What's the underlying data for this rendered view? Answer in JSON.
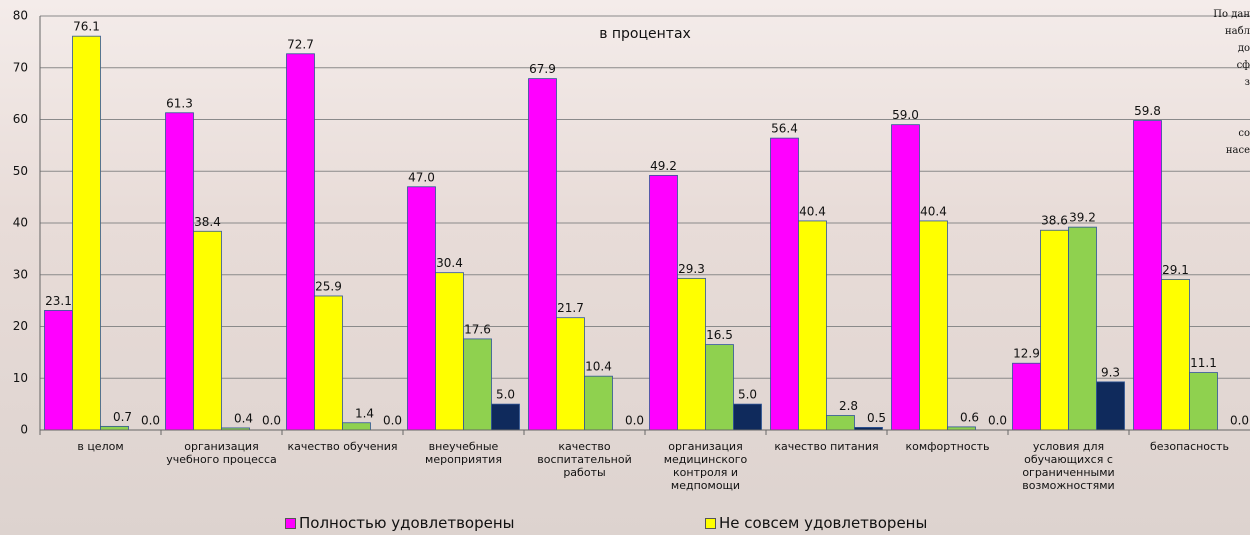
{
  "chart_data": {
    "type": "bar",
    "subtitle": "в процентах",
    "side_note": [
      "По дан",
      "набл",
      "до",
      "сф",
      "з",
      "со",
      "насе"
    ],
    "categories": [
      "в целом",
      "организация учебного процесса",
      "качество обучения",
      "внеучебные мероприятия",
      "качество воспитательной работы",
      "организация медицинского контроля и медпомощи",
      "качество питания",
      "комфортность",
      "условия для обучающихся с ограниченными возможностями",
      "безопасность"
    ],
    "series": [
      {
        "name": "Полностью удовлетворены",
        "color": "#ff00ff",
        "values": [
          23.1,
          61.3,
          72.7,
          47.0,
          67.9,
          49.2,
          56.4,
          59.0,
          12.9,
          59.8
        ],
        "value_labels": [
          "23.1",
          "61.3",
          "72.7",
          "47.0",
          "67.9",
          "49.2",
          "56.4",
          "59.0",
          "12.9",
          "59.8"
        ]
      },
      {
        "name": "Не совсем удовлетворены",
        "color": "#ffff00",
        "values": [
          76.1,
          38.4,
          25.9,
          30.4,
          21.7,
          29.3,
          40.4,
          40.4,
          38.6,
          29.1
        ],
        "value_labels": [
          "76.1",
          "38.4",
          "25.9",
          "30.4",
          "21.7",
          "29.3",
          "40.4",
          "40.4",
          "38.6",
          "29.1"
        ]
      },
      {
        "color": "#8fd14f",
        "values": [
          0.7,
          0.4,
          1.4,
          17.6,
          10.4,
          16.5,
          2.8,
          0.6,
          39.2,
          11.1
        ],
        "value_labels": [
          "0.7",
          "0.4",
          "1.4",
          "17.6",
          "10.4",
          "16.5",
          "2.8",
          "0.6",
          "39.2",
          "11.1"
        ]
      },
      {
        "color": "#0f2a5c",
        "values": [
          0,
          0,
          0,
          5.0,
          0,
          5.0,
          0.5,
          0,
          9.3,
          0
        ],
        "value_labels": [
          "0.0",
          "0.0",
          "0.0",
          "5.0",
          "0.0",
          "5.0",
          "0.5",
          "0.0",
          "9.3",
          "0.0"
        ]
      }
    ],
    "ylim": [
      0,
      80
    ],
    "yticks": [
      0,
      10,
      20,
      30,
      40,
      50,
      60,
      70,
      80
    ],
    "grid": true
  }
}
